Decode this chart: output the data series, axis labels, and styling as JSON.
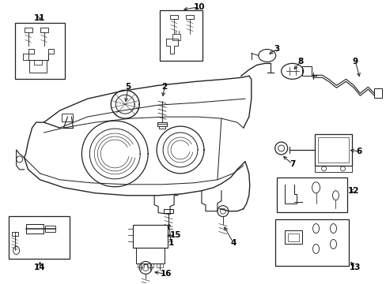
{
  "background_color": "#ffffff",
  "fig_width": 4.89,
  "fig_height": 3.6,
  "dpi": 100,
  "lc": "#222222",
  "lw": 0.9
}
